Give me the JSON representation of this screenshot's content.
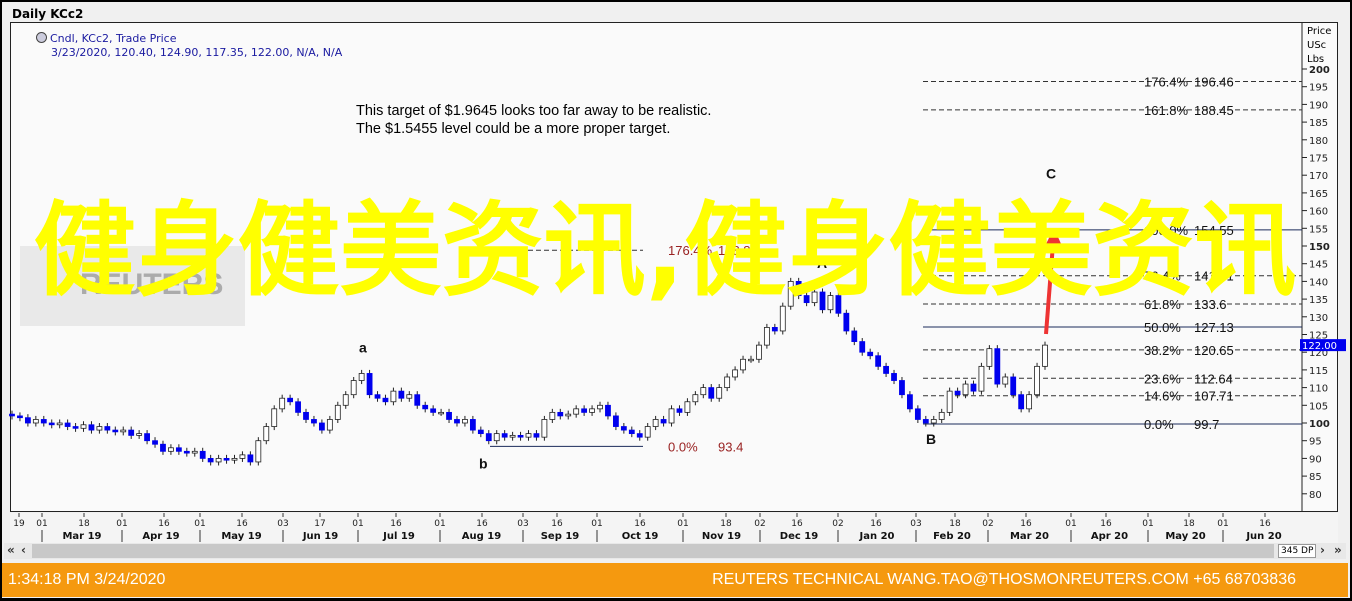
{
  "window": {
    "title": "Daily KCc2"
  },
  "legend": {
    "series": "Cndl, KCc2, Trade Price",
    "values": "3/23/2020, 120.40, 124.90, 117.35, 122.00, N/A, N/A",
    "icon": "clock-icon"
  },
  "watermark": {
    "text": "健身健美资讯,健身健美资讯",
    "color": "#ffff00",
    "logo": "REUTERS"
  },
  "chart_data": {
    "type": "candlestick",
    "title": "Daily KCc2",
    "ylabel": "Price USc Lbs",
    "ylabel_lines": [
      "Price",
      "USc",
      "Lbs"
    ],
    "ylim": [
      78,
      205
    ],
    "yticks": [
      80,
      85,
      90,
      95,
      100,
      105,
      110,
      115,
      120,
      125,
      130,
      135,
      140,
      145,
      150,
      155,
      160,
      165,
      170,
      175,
      180,
      185,
      190,
      195,
      200
    ],
    "x_range": [
      "2/19/2019",
      "6/30/2020"
    ],
    "closes": [
      102,
      101.5,
      100,
      101,
      100,
      99.5,
      100,
      99,
      98.5,
      99.5,
      98,
      99,
      98,
      97.5,
      98,
      96.5,
      97,
      95,
      94,
      92,
      93,
      92,
      91.5,
      92,
      90,
      89,
      90,
      89.5,
      90,
      91,
      89,
      95,
      99,
      104,
      107,
      106,
      103,
      101,
      100,
      98,
      101,
      105,
      108,
      112,
      114,
      108,
      107,
      106,
      109,
      107,
      108,
      105,
      104,
      103,
      103,
      101,
      100,
      101,
      98,
      97,
      95,
      97,
      96,
      96.5,
      96,
      97,
      96,
      101,
      103,
      102,
      102.5,
      104,
      103,
      104,
      105,
      102,
      99,
      98,
      97,
      96,
      99,
      101,
      100,
      104,
      103,
      106,
      108,
      110,
      107,
      110,
      113,
      115,
      118,
      118,
      122,
      127,
      126,
      133,
      140,
      136,
      134,
      137,
      132,
      136,
      131,
      126,
      123,
      120,
      119,
      116,
      114,
      112,
      108,
      104,
      101,
      100,
      101,
      103,
      109,
      108,
      111,
      109,
      116,
      121,
      111,
      113,
      108,
      104,
      108,
      116,
      122
    ],
    "colors": {
      "up": "#ffffff",
      "down": "#0000ee",
      "outline": "#222222",
      "last_price_tag": "#0000ee",
      "arrow": "#ee3333"
    },
    "last_price": "122.00",
    "day_ticks": [
      "19",
      "01",
      "18",
      "01",
      "16",
      "01",
      "16",
      "03",
      "17",
      "01",
      "16",
      "01",
      "16",
      "03",
      "16",
      "01",
      "16",
      "01",
      "18",
      "02",
      "16",
      "02",
      "16",
      "03",
      "18",
      "02",
      "16",
      "01",
      "16",
      "01",
      "18",
      "01",
      "16"
    ],
    "months": [
      "Mar 19",
      "Apr 19",
      "May 19",
      "Jun 19",
      "Jul 19",
      "Aug 19",
      "Sep 19",
      "Oct 19",
      "Nov 19",
      "Dec 19",
      "Jan 20",
      "Feb 20",
      "Mar 20",
      "Apr 20",
      "May 20",
      "Jun 20"
    ],
    "fib_right": [
      {
        "pct": "176.4%",
        "value": "196.46",
        "price": 196.46,
        "style": "dashed"
      },
      {
        "pct": "161.8%",
        "value": "188.45",
        "price": 188.45,
        "style": "dashed"
      },
      {
        "pct": "100.0%",
        "value": "154.55",
        "price": 154.55,
        "style": "solid"
      },
      {
        "pct": "76.4%",
        "value": "141.61",
        "price": 141.61,
        "style": "dashed"
      },
      {
        "pct": "61.8%",
        "value": "133.6",
        "price": 133.6,
        "style": "dashed"
      },
      {
        "pct": "50.0%",
        "value": "127.13",
        "price": 127.13,
        "style": "solid"
      },
      {
        "pct": "38.2%",
        "value": "120.65",
        "price": 120.65,
        "style": "dashed"
      },
      {
        "pct": "23.6%",
        "value": "112.64",
        "price": 112.64,
        "style": "dashed"
      },
      {
        "pct": "14.6%",
        "value": "107.71",
        "price": 107.71,
        "style": "dashed"
      },
      {
        "pct": "0.0%",
        "value": "99.7",
        "price": 99.7,
        "style": "solid"
      }
    ],
    "fib_left": [
      {
        "pct": "176.4%",
        "value": "148.8",
        "price": 148.8,
        "style": "dashed"
      },
      {
        "pct": "0.0%",
        "value": "93.4",
        "price": 93.4,
        "style": "solid"
      }
    ],
    "wave_labels": [
      {
        "text": "a",
        "price": 116
      },
      {
        "text": "b",
        "price": 93.4
      },
      {
        "text": "A",
        "price": 141
      },
      {
        "text": "B",
        "price": 99.7
      },
      {
        "text": "C",
        "price": 155
      }
    ],
    "annotation": [
      "This target of $1.9645 looks too far away to be realistic.",
      "The $1.5455 level could be a more proper target."
    ]
  },
  "scrollbar": {
    "points": "345 DP"
  },
  "footer": {
    "timestamp": "1:34:18 PM 3/24/2020",
    "contact": "REUTERS TECHNICAL  WANG.TAO@THOSMONREUTERS.COM  +65 68703836"
  }
}
